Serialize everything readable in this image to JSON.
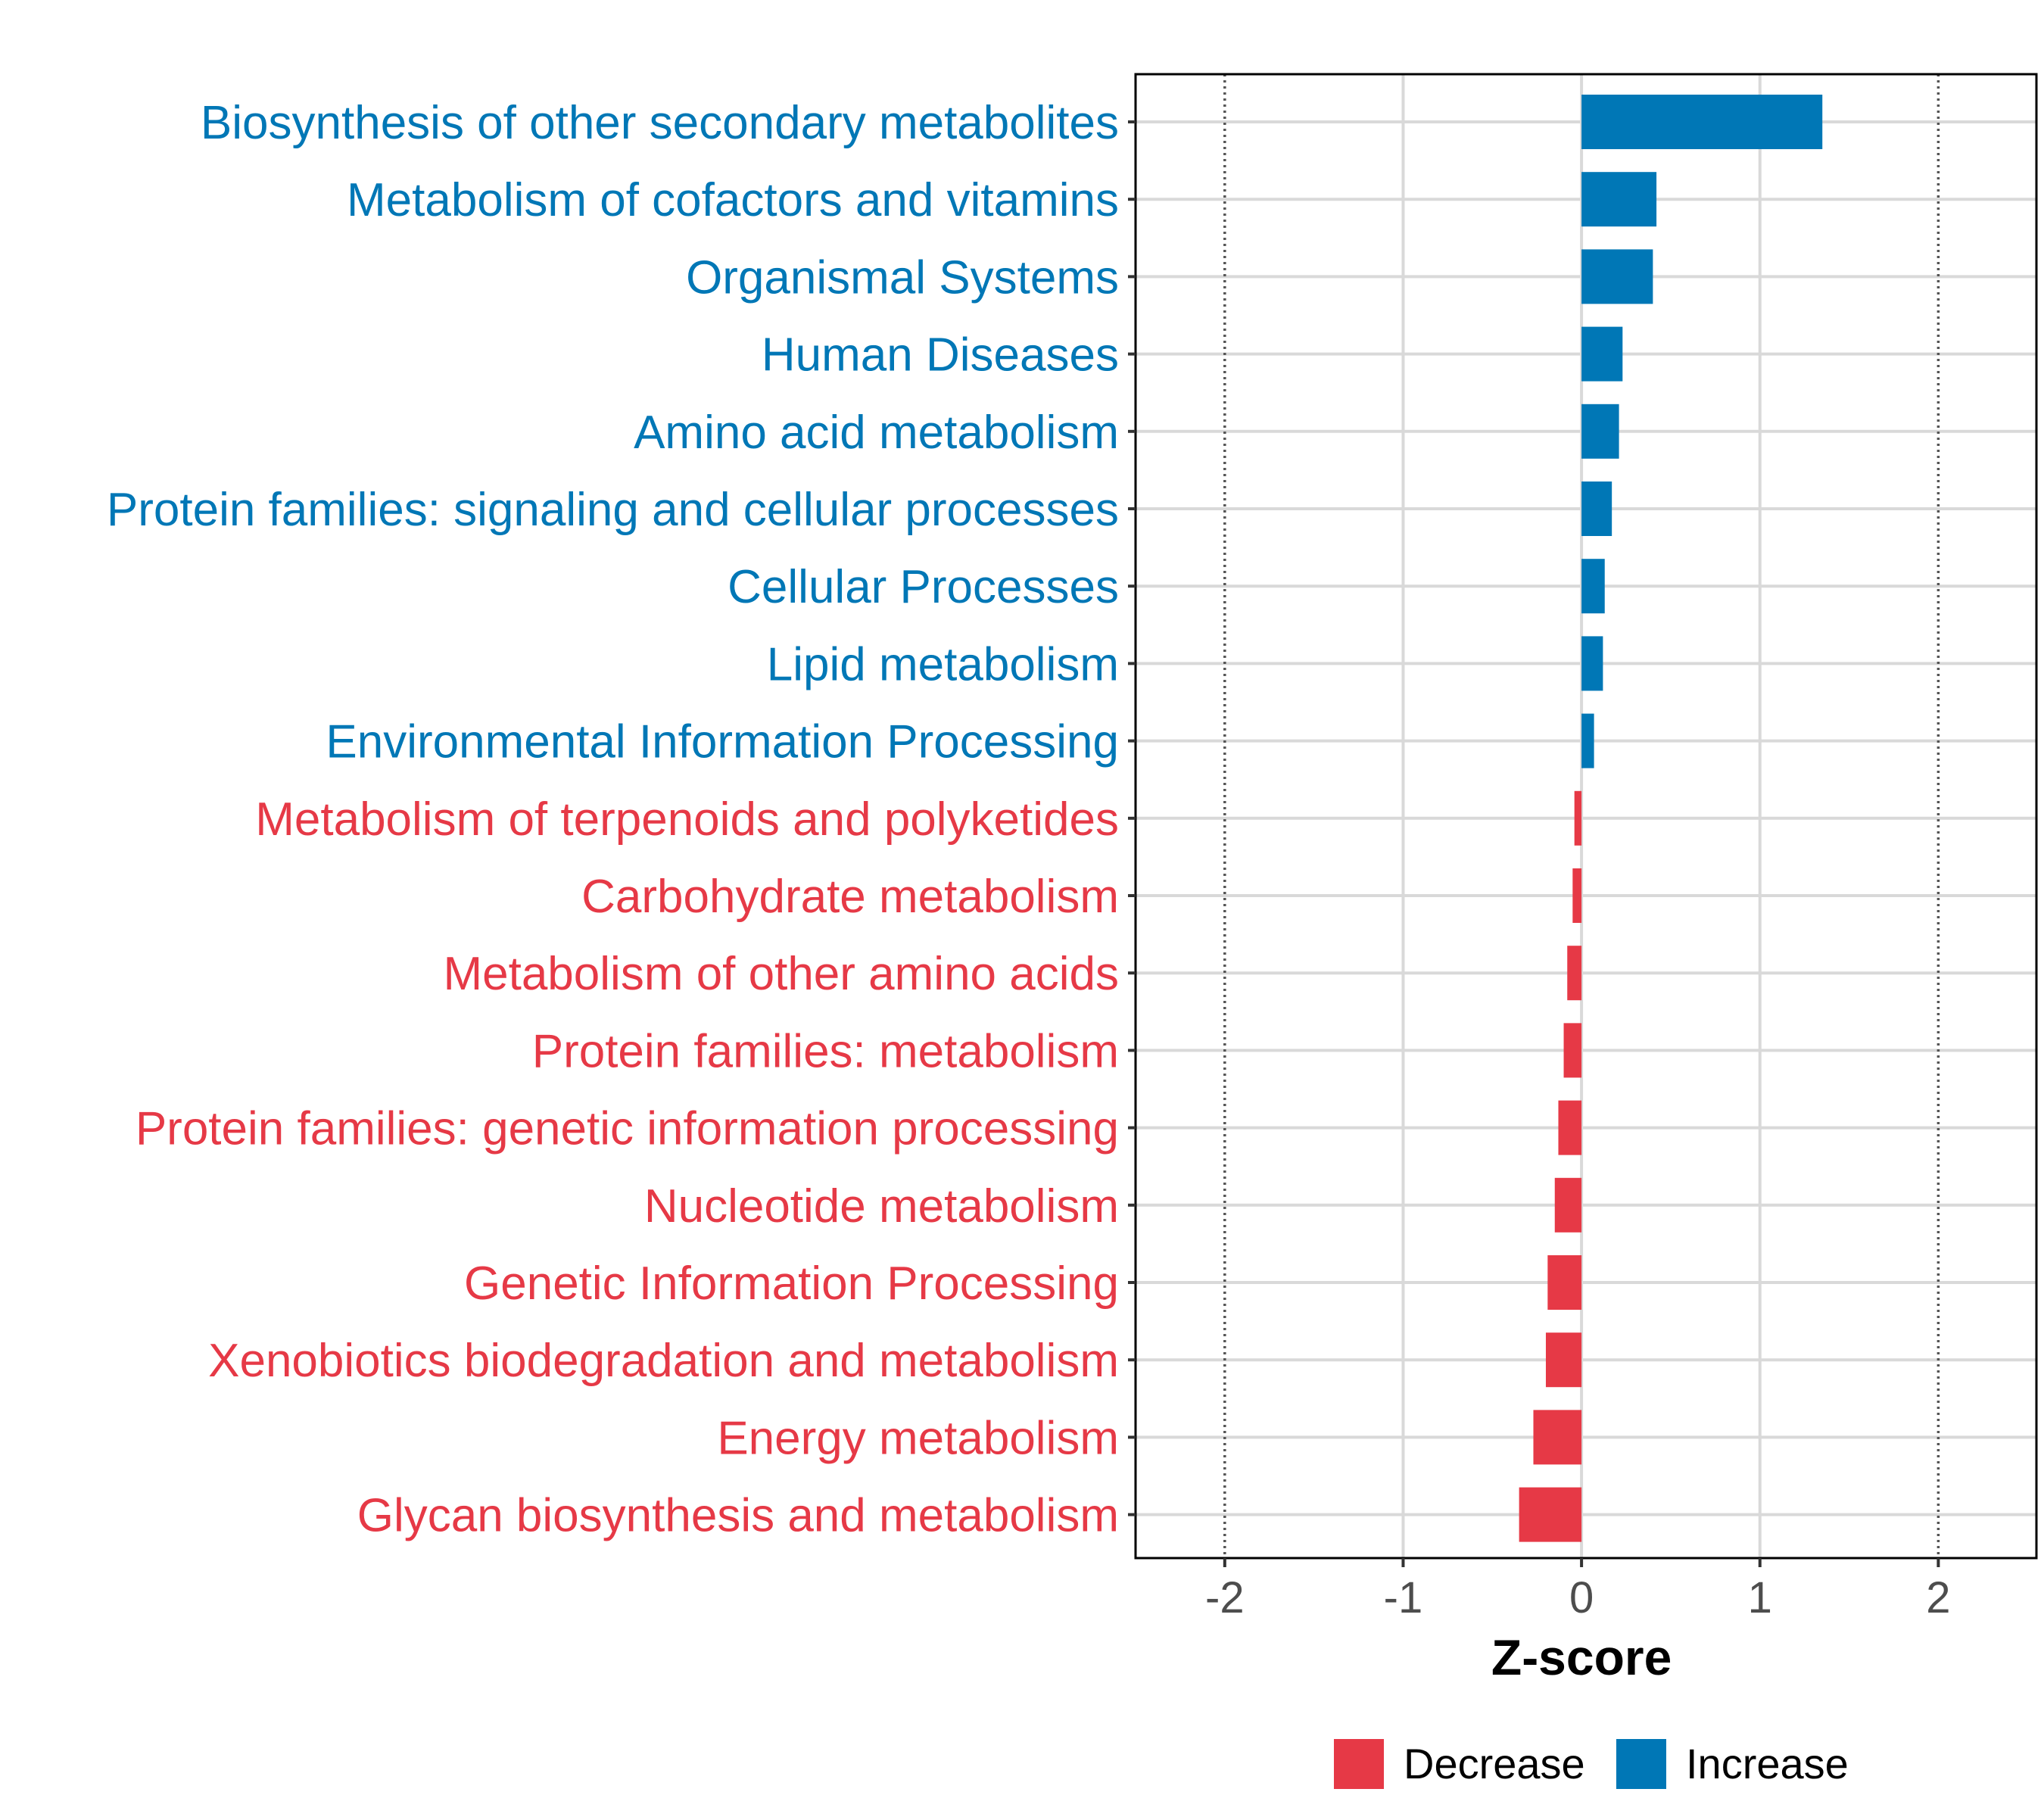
{
  "chart_data": {
    "type": "bar",
    "orientation": "horizontal",
    "xlabel": "Z-score",
    "xlim": [
      -2.5,
      2.55
    ],
    "xticks": [
      -2,
      -1,
      0,
      1,
      2
    ],
    "xtick_labels": [
      "-2",
      "-1",
      "0",
      "1",
      "2"
    ],
    "reference_lines": [
      -2,
      2
    ],
    "grid": true,
    "legend_position": "bottom",
    "colors": {
      "Decrease": "#e63946",
      "Increase": "#0077b6"
    },
    "legend": [
      {
        "name": "Decrease",
        "color": "#e63946"
      },
      {
        "name": "Increase",
        "color": "#0077b6"
      }
    ],
    "categories": [
      "Biosynthesis of other secondary metabolites",
      "Metabolism of cofactors and vitamins",
      "Organismal Systems",
      "Human Diseases",
      "Amino acid metabolism",
      "Protein families: signaling and cellular processes",
      "Cellular Processes",
      "Lipid metabolism",
      "Environmental Information Processing",
      "Metabolism of terpenoids and polyketides",
      "Carbohydrate metabolism",
      "Metabolism of other amino acids",
      "Protein families: metabolism",
      "Protein families: genetic information processing",
      "Nucleotide metabolism",
      "Genetic Information Processing",
      "Xenobiotics biodegradation and metabolism",
      "Energy metabolism",
      "Glycan biosynthesis and metabolism"
    ],
    "values": [
      1.35,
      0.42,
      0.4,
      0.23,
      0.21,
      0.17,
      0.13,
      0.12,
      0.07,
      -0.04,
      -0.05,
      -0.08,
      -0.1,
      -0.13,
      -0.15,
      -0.19,
      -0.2,
      -0.27,
      -0.35
    ],
    "groups": [
      "Increase",
      "Increase",
      "Increase",
      "Increase",
      "Increase",
      "Increase",
      "Increase",
      "Increase",
      "Increase",
      "Decrease",
      "Decrease",
      "Decrease",
      "Decrease",
      "Decrease",
      "Decrease",
      "Decrease",
      "Decrease",
      "Decrease",
      "Decrease"
    ]
  }
}
